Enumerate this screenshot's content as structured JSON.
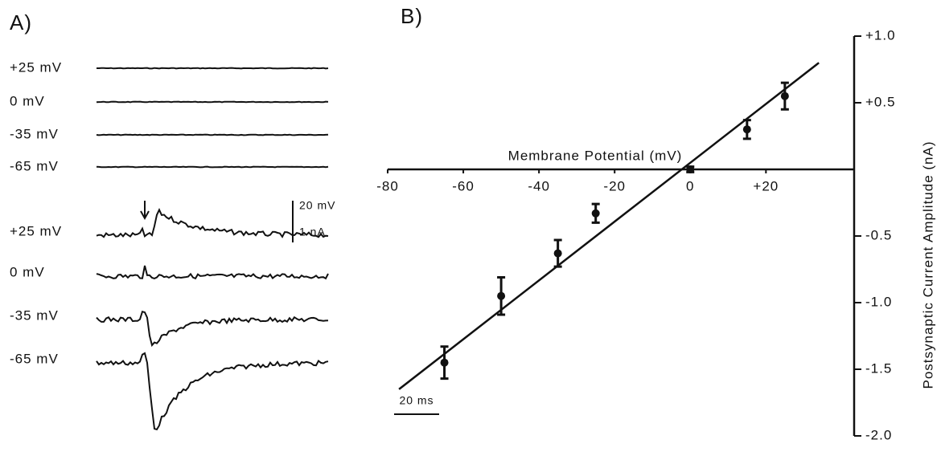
{
  "panel_a": {
    "label": "A)",
    "voltage_traces": [
      "+25 mV",
      "0 mV",
      "-35 mV",
      "-65 mV"
    ],
    "current_traces": [
      "+25 mV",
      "0 mV",
      "-35 mV",
      "-65 mV"
    ],
    "scale_bars": {
      "vertical": [
        "20 mV",
        "1 nA"
      ],
      "horizontal": "20 ms"
    }
  },
  "chart_data": {
    "type": "scatter",
    "label": "B)",
    "x_label": "Membrane Potential (mV)",
    "y_label": "Postsynaptic Current Amplitude (nA)",
    "x": [
      -65,
      -50,
      -35,
      -25,
      0,
      15,
      25
    ],
    "values": [
      -1.45,
      -0.95,
      -0.63,
      -0.33,
      0.0,
      0.3,
      0.55
    ],
    "errors": [
      0.12,
      0.14,
      0.1,
      0.07,
      0.02,
      0.07,
      0.1
    ],
    "fit_line": {
      "x": [
        -77,
        34
      ],
      "y": [
        -1.65,
        0.8
      ]
    },
    "color": "#111111",
    "xlim": [
      -80,
      38
    ],
    "xticks": [
      -80,
      -60,
      -40,
      -20,
      0,
      {
        "value": 20,
        "label": "+20"
      }
    ],
    "ylim": [
      -2.0,
      1.0
    ],
    "yticks": [
      {
        "value": 1.0,
        "label": "+1.0"
      },
      {
        "value": 0.5,
        "label": "+0.5"
      },
      -0.5,
      {
        "value": -1.0,
        "label": "-1.0"
      },
      -1.5,
      {
        "value": -2.0,
        "label": "-2.0"
      }
    ]
  }
}
